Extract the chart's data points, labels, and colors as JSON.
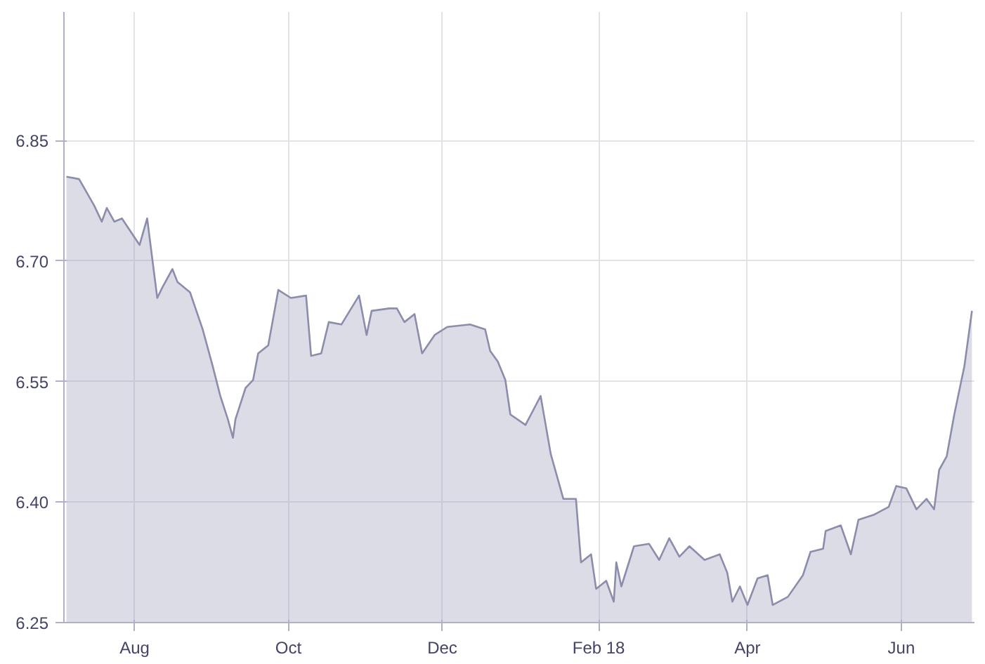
{
  "chart_data": {
    "type": "area",
    "x": [
      "2017-07-05",
      "2017-07-10",
      "2017-07-16",
      "2017-07-19",
      "2017-07-21",
      "2017-07-24",
      "2017-07-27",
      "2017-08-03",
      "2017-08-06",
      "2017-08-10",
      "2017-08-12",
      "2017-08-16",
      "2017-08-18",
      "2017-08-23",
      "2017-08-28",
      "2017-09-01",
      "2017-09-04",
      "2017-09-07",
      "2017-09-09",
      "2017-09-10",
      "2017-09-14",
      "2017-09-17",
      "2017-09-19",
      "2017-09-23",
      "2017-09-27",
      "2017-10-02",
      "2017-10-08",
      "2017-10-10",
      "2017-10-14",
      "2017-10-17",
      "2017-10-22",
      "2017-10-29",
      "2017-11-01",
      "2017-11-03",
      "2017-11-10",
      "2017-11-13",
      "2017-11-16",
      "2017-11-20",
      "2017-11-23",
      "2017-11-28",
      "2017-12-03",
      "2017-12-12",
      "2017-12-18",
      "2017-12-20",
      "2017-12-23",
      "2017-12-26",
      "2017-12-28",
      "2018-01-03",
      "2018-01-09",
      "2018-01-13",
      "2018-01-18",
      "2018-01-23",
      "2018-01-25",
      "2018-01-29",
      "2018-01-31",
      "2018-02-04",
      "2018-02-07",
      "2018-02-08",
      "2018-02-10",
      "2018-02-15",
      "2018-02-21",
      "2018-02-25",
      "2018-03-01",
      "2018-03-05",
      "2018-03-09",
      "2018-03-15",
      "2018-03-21",
      "2018-03-24",
      "2018-03-26",
      "2018-03-29",
      "2018-04-01",
      "2018-04-05",
      "2018-04-09",
      "2018-04-11",
      "2018-04-17",
      "2018-04-23",
      "2018-04-26",
      "2018-05-01",
      "2018-05-02",
      "2018-05-08",
      "2018-05-12",
      "2018-05-15",
      "2018-05-21",
      "2018-05-27",
      "2018-05-30",
      "2018-06-03",
      "2018-06-07",
      "2018-06-11",
      "2018-06-14",
      "2018-06-16",
      "2018-06-19",
      "2018-06-22",
      "2018-06-26",
      "2018-06-29"
    ],
    "series": [
      {
        "color": "#8c8cac",
        "values": [
          6.805,
          6.802,
          6.769,
          6.749,
          6.766,
          6.749,
          6.753,
          6.72,
          6.753,
          6.654,
          6.667,
          6.69,
          6.674,
          6.661,
          6.615,
          6.569,
          6.532,
          6.503,
          6.48,
          6.503,
          6.542,
          6.552,
          6.585,
          6.595,
          6.664,
          6.654,
          6.657,
          6.582,
          6.585,
          6.624,
          6.621,
          6.657,
          6.608,
          6.638,
          6.641,
          6.641,
          6.624,
          6.634,
          6.585,
          6.608,
          6.618,
          6.621,
          6.615,
          6.588,
          6.575,
          6.552,
          6.509,
          6.496,
          6.532,
          6.46,
          6.404,
          6.404,
          6.325,
          6.335,
          6.292,
          6.302,
          6.276,
          6.325,
          6.295,
          6.345,
          6.348,
          6.328,
          6.355,
          6.332,
          6.345,
          6.328,
          6.335,
          6.312,
          6.276,
          6.295,
          6.272,
          6.305,
          6.309,
          6.272,
          6.282,
          6.309,
          6.338,
          6.342,
          6.364,
          6.371,
          6.335,
          6.378,
          6.384,
          6.394,
          6.42,
          6.417,
          6.391,
          6.404,
          6.391,
          6.44,
          6.457,
          6.509,
          6.569,
          6.638
        ]
      }
    ],
    "xlim": [
      "2017-07-04",
      "2018-06-30"
    ],
    "xticks": [
      {
        "value": "2017-08-01",
        "label": "Aug"
      },
      {
        "value": "2017-10-01",
        "label": "Oct"
      },
      {
        "value": "2017-12-01",
        "label": "Dec"
      },
      {
        "value": "2018-02-01",
        "label": "Feb 18"
      },
      {
        "value": "2018-04-01",
        "label": "Apr"
      },
      {
        "value": "2018-06-01",
        "label": "Jun"
      }
    ],
    "ylim": [
      6.25,
      7.01
    ],
    "yticks": [
      {
        "value": 6.25,
        "label": "6.25"
      },
      {
        "value": 6.4,
        "label": "6.40"
      },
      {
        "value": 6.55,
        "label": "6.55"
      },
      {
        "value": 6.7,
        "label": "6.70"
      },
      {
        "value": 6.85,
        "label": "6.85"
      }
    ],
    "grid": true,
    "marker": "none",
    "line_style": "solid"
  }
}
